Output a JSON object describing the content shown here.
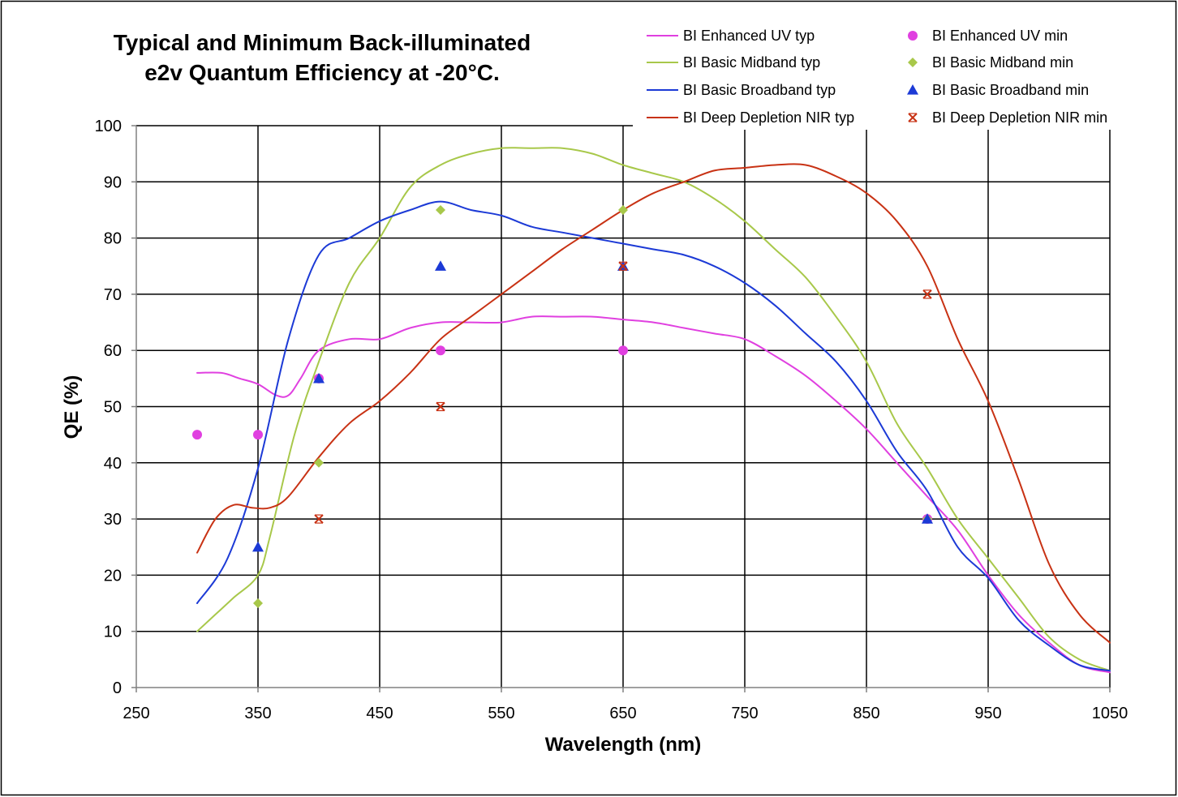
{
  "chart_data": {
    "type": "line",
    "title_lines": [
      "Typical and Minimum Back-illuminated",
      "e2v Quantum Efficiency at -20°C."
    ],
    "xlabel": "Wavelength (nm)",
    "ylabel": "QE (%)",
    "xlim": [
      250,
      1050
    ],
    "ylim": [
      0,
      100
    ],
    "xticks": [
      250,
      350,
      450,
      550,
      650,
      750,
      850,
      950,
      1050
    ],
    "yticks": [
      0,
      10,
      20,
      30,
      40,
      50,
      60,
      70,
      80,
      90,
      100
    ],
    "x_gridlines": [
      350,
      450,
      550,
      650,
      750,
      850,
      950,
      1050
    ],
    "y_gridlines": [
      10,
      20,
      30,
      40,
      50,
      60,
      70,
      80,
      90,
      100
    ],
    "grid": true,
    "legend_position": "top-right",
    "series": [
      {
        "name": "BI Enhanced UV typ",
        "kind": "line",
        "color": "#e040e0",
        "x": [
          300,
          320,
          335,
          350,
          365,
          375,
          385,
          400,
          425,
          450,
          475,
          500,
          525,
          550,
          575,
          600,
          625,
          650,
          675,
          700,
          725,
          750,
          775,
          800,
          825,
          850,
          875,
          900,
          925,
          950,
          975,
          1000,
          1025,
          1050
        ],
        "y": [
          56,
          56,
          55,
          54,
          52,
          52,
          55,
          60,
          62,
          62,
          64,
          65,
          65,
          65,
          66,
          66,
          66,
          65.5,
          65,
          64,
          63,
          62,
          59,
          55.5,
          51,
          46,
          40,
          34,
          28,
          20,
          13,
          8,
          4,
          2.7
        ]
      },
      {
        "name": "BI Basic Midband typ",
        "kind": "line",
        "color": "#a8c84a",
        "x": [
          300,
          315,
          330,
          350,
          360,
          380,
          400,
          425,
          450,
          475,
          500,
          525,
          550,
          575,
          600,
          625,
          650,
          675,
          700,
          725,
          750,
          775,
          800,
          825,
          850,
          875,
          900,
          925,
          950,
          975,
          1000,
          1025,
          1050
        ],
        "y": [
          10,
          13,
          16,
          20,
          27,
          45,
          58,
          72,
          80,
          89,
          93,
          95,
          96,
          96,
          96,
          95,
          93,
          91.5,
          90,
          87,
          83,
          78,
          73,
          66,
          58,
          47,
          39,
          30,
          23,
          16,
          9,
          5,
          3
        ]
      },
      {
        "name": "BI Basic Broadband typ",
        "kind": "line",
        "color": "#1c3ad6",
        "x": [
          300,
          325,
          350,
          375,
          400,
          425,
          450,
          475,
          500,
          525,
          550,
          575,
          600,
          625,
          650,
          675,
          700,
          725,
          750,
          775,
          800,
          825,
          850,
          875,
          900,
          925,
          950,
          975,
          1000,
          1025,
          1050
        ],
        "y": [
          15,
          23,
          39,
          62,
          77,
          80,
          83,
          85,
          86.5,
          85,
          84,
          82,
          81,
          80,
          79,
          78,
          77,
          75,
          72,
          68,
          63,
          58,
          51,
          42,
          35,
          25,
          19.5,
          12,
          7.5,
          4,
          3
        ]
      },
      {
        "name": "BI Deep Depletion NIR typ",
        "kind": "line",
        "color": "#c83214",
        "x": [
          300,
          315,
          330,
          345,
          360,
          375,
          400,
          425,
          450,
          475,
          500,
          525,
          550,
          575,
          600,
          625,
          650,
          675,
          700,
          725,
          750,
          775,
          800,
          825,
          850,
          875,
          900,
          925,
          950,
          975,
          1000,
          1025,
          1050
        ],
        "y": [
          24,
          30,
          32.5,
          32,
          32,
          34,
          41,
          47,
          51,
          56,
          62,
          66,
          70,
          74,
          78,
          81.5,
          85,
          88,
          90,
          92,
          92.5,
          93,
          93,
          91,
          88,
          83,
          75,
          62,
          51,
          37,
          22,
          13,
          8
        ]
      },
      {
        "name": "BI Enhanced UV min",
        "kind": "marker",
        "marker": "circle",
        "color": "#e040e0",
        "x": [
          300,
          350,
          400,
          500,
          650,
          900
        ],
        "y": [
          45,
          45,
          55,
          60,
          60,
          30
        ]
      },
      {
        "name": "BI Basic Midband min",
        "kind": "marker",
        "marker": "diamond",
        "color": "#a8c84a",
        "x": [
          350,
          400,
          500,
          650,
          900
        ],
        "y": [
          15,
          40,
          85,
          85,
          30
        ]
      },
      {
        "name": "BI Basic Broadband min",
        "kind": "marker",
        "marker": "triangle",
        "color": "#1c3ad6",
        "x": [
          350,
          400,
          500,
          650,
          900
        ],
        "y": [
          25,
          55,
          75,
          75,
          30
        ]
      },
      {
        "name": "BI Deep Depletion NIR min",
        "kind": "marker",
        "marker": "star",
        "color": "#c83214",
        "x": [
          400,
          500,
          650,
          900
        ],
        "y": [
          30,
          50,
          75,
          70
        ]
      }
    ]
  }
}
